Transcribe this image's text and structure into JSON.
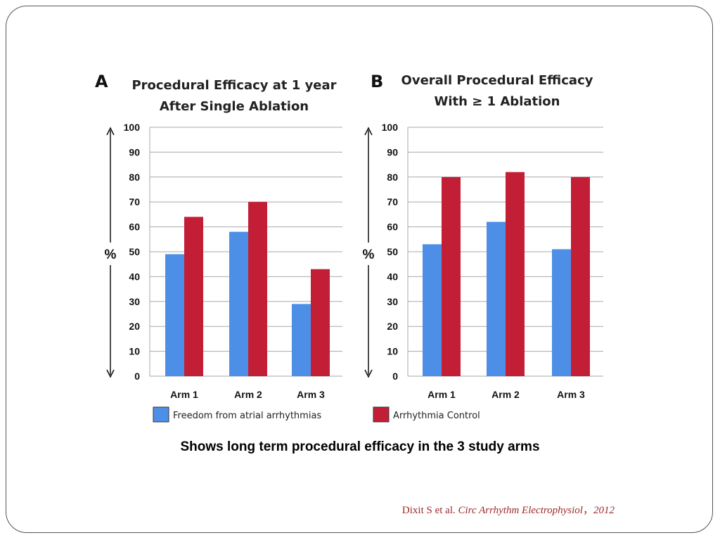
{
  "chart_data": [
    {
      "type": "bar",
      "panel": "A",
      "title_lines": [
        "Procedural Efficacy at 1 year",
        "After Single Ablation"
      ],
      "ylabel": "%",
      "ylim": [
        0,
        100
      ],
      "yticks": [
        "0",
        "10",
        "20",
        "30",
        "40",
        "50",
        "60",
        "70",
        "80",
        "90",
        "100"
      ],
      "grid": true,
      "categories": [
        "Arm 1",
        "Arm 2",
        "Arm 3"
      ],
      "series": [
        {
          "name": "Freedom from atrial arrhythmias",
          "color": "#4d8fe6",
          "values": [
            49,
            58,
            29
          ]
        },
        {
          "name": "Arrhythmia Control",
          "color": "#c21f36",
          "values": [
            64,
            70,
            43
          ]
        }
      ]
    },
    {
      "type": "bar",
      "panel": "B",
      "title_lines": [
        "Overall Procedural Efficacy",
        "With ≥ 1 Ablation"
      ],
      "ylabel": "%",
      "ylim": [
        0,
        100
      ],
      "yticks": [
        "0",
        "10",
        "20",
        "30",
        "40",
        "50",
        "60",
        "70",
        "80",
        "90",
        "100"
      ],
      "grid": true,
      "categories": [
        "Arm 1",
        "Arm 2",
        "Arm 3"
      ],
      "series": [
        {
          "name": "Freedom from atrial arrhythmias",
          "color": "#4d8fe6",
          "values": [
            53,
            62,
            51
          ]
        },
        {
          "name": "Arrhythmia Control",
          "color": "#c21f36",
          "values": [
            80,
            82,
            80
          ]
        }
      ]
    }
  ],
  "legend": [
    {
      "label": "Freedom from atrial arrhythmias",
      "color": "#4d8fe6"
    },
    {
      "label": "Arrhythmia Control",
      "color": "#c21f36"
    }
  ],
  "caption": "Shows long term procedural efficacy in the 3 study arms",
  "citation": {
    "authors": "Dixit S et al. ",
    "journal": "Circ Arrhythm Electrophysiol",
    "separator": "，",
    "year": "2012"
  }
}
